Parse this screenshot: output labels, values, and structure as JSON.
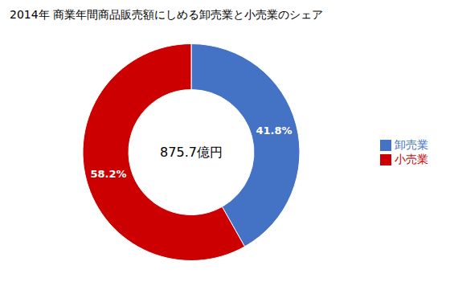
{
  "chart_data": {
    "type": "pie",
    "title": "2014年 商業年間商品販売額にしめる卸売業と小売業のシェア",
    "annotations": [
      "875.7億円"
    ],
    "categories": [
      "卸売業",
      "小売業"
    ],
    "values": [
      41.8,
      58.2
    ],
    "value_labels": [
      "41.8%",
      "58.2%"
    ],
    "colors": [
      "#4472C4",
      "#CC0000"
    ],
    "data_labels": true,
    "legend": "right"
  }
}
